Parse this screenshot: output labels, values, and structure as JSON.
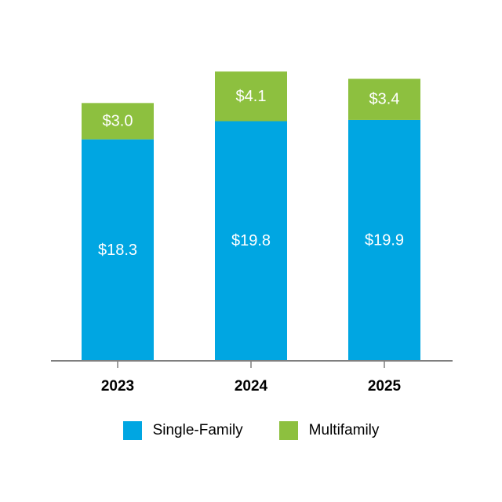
{
  "chart_data": {
    "type": "bar",
    "stacked": true,
    "categories": [
      "2023",
      "2024",
      "2025"
    ],
    "series": [
      {
        "name": "Single-Family",
        "values": [
          18.3,
          19.8,
          19.9
        ],
        "labels": [
          "$18.3",
          "$19.8",
          "$19.9"
        ],
        "color": "#00a6e2"
      },
      {
        "name": "Multifamily",
        "values": [
          3.0,
          4.1,
          3.4
        ],
        "labels": [
          "$3.0",
          "$4.1",
          "$3.4"
        ],
        "color": "#8dc03f"
      }
    ],
    "ylim": [
      0,
      26
    ],
    "grid": false,
    "legend": "bottom",
    "axis_color": "#7f7f7f"
  }
}
